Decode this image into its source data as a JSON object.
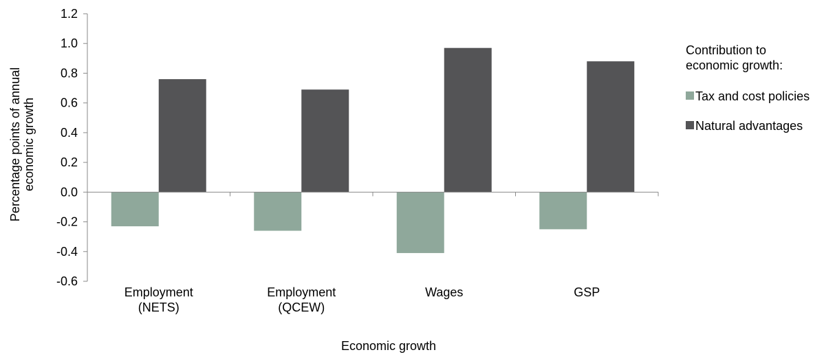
{
  "chart_data": {
    "type": "bar",
    "title": "",
    "xlabel": "Economic growth",
    "ylabel_lines": [
      "Percentage points of annual",
      "economic growth"
    ],
    "categories": [
      [
        "Employment",
        "(NETS)"
      ],
      [
        "Employment",
        "(QCEW)"
      ],
      [
        "Wages"
      ],
      [
        "GSP"
      ]
    ],
    "ylim": [
      -0.6,
      1.2
    ],
    "yticks": [
      "-0.6",
      "-0.4",
      "-0.2",
      "0.0",
      "0.2",
      "0.4",
      "0.6",
      "0.8",
      "1.0",
      "1.2"
    ],
    "grid": false,
    "legend": {
      "title_lines": [
        "Contribution to",
        "economic growth:"
      ],
      "placement": "right"
    },
    "series": [
      {
        "name": "Tax and cost policies",
        "color": "#8fa89b",
        "values": [
          -0.23,
          -0.26,
          -0.41,
          -0.25
        ]
      },
      {
        "name": "Natural advantages",
        "color": "#545456",
        "values": [
          0.76,
          0.69,
          0.97,
          0.88
        ]
      }
    ]
  }
}
